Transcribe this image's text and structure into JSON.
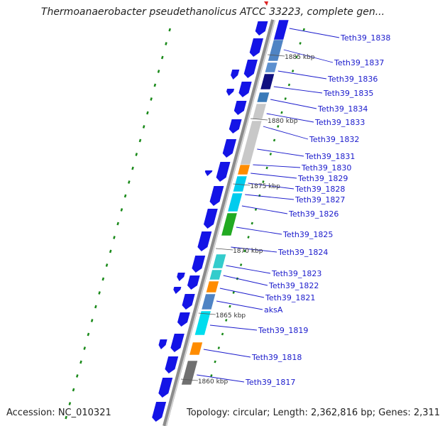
{
  "title": "Thermoanaerobacter pseudethanolicus ATCC 33223, complete gen...",
  "footer": {
    "accession": "Accession: NC_010321",
    "summary": "Topology: circular; Length: 2,362,816 bp; Genes: 2,311"
  },
  "colors": {
    "backbone": "#8c8c8c",
    "cds": "#1414e6",
    "cds_dark": "#0000aa",
    "link": "#1a1acc",
    "dot": "#1a8a1a"
  },
  "ticks": [
    "1885 kbp",
    "1880 kbp",
    "1875 kbp",
    "1870 kbp",
    "1865 kbp",
    "1860 kbp"
  ],
  "genes": [
    {
      "label": "Teth39_1838",
      "color": "#1414e6"
    },
    {
      "label": "Teth39_1837",
      "color": "#4f84c4"
    },
    {
      "label": "Teth39_1836",
      "color": "#101080"
    },
    {
      "label": "Teth39_1835",
      "color": "#3a7ab8"
    },
    {
      "label": "Teth39_1834",
      "color": "#c8c8c8"
    },
    {
      "label": "Teth39_1833",
      "color": "#c8c8c8"
    },
    {
      "label": "Teth39_1832",
      "color": "#c8c8c8"
    },
    {
      "label": "Teth39_1831",
      "color": "#c8c8c8"
    },
    {
      "label": "Teth39_1830",
      "color": "#ff8c00"
    },
    {
      "label": "Teth39_1829",
      "color": "#00ccee"
    },
    {
      "label": "Teth39_1828",
      "color": "#00ccee"
    },
    {
      "label": "Teth39_1827",
      "color": "#00ccee"
    },
    {
      "label": "Teth39_1826",
      "color": "#22aa22"
    },
    {
      "label": "Teth39_1825",
      "color": "#1414e6"
    },
    {
      "label": "Teth39_1824",
      "color": "#1414e6"
    },
    {
      "label": "Teth39_1823",
      "color": "#33cccc"
    },
    {
      "label": "Teth39_1822",
      "color": "#ff8c00"
    },
    {
      "label": "Teth39_1821",
      "color": "#4f84c4"
    },
    {
      "label": "aksA",
      "color": "#00ddee"
    },
    {
      "label": "Teth39_1819",
      "color": "#00ddee"
    },
    {
      "label": "Teth39_1818",
      "color": "#ff8c00"
    },
    {
      "label": "Teth39_1817",
      "color": "#707070"
    }
  ]
}
